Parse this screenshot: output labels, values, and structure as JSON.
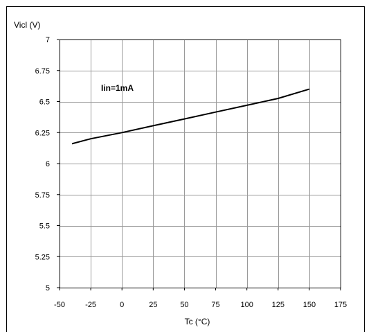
{
  "chart_data": {
    "type": "line",
    "xlabel": "Tc (°C)",
    "ylabel": "Vicl (V)",
    "xlim": [
      -50,
      175
    ],
    "ylim": [
      5,
      7
    ],
    "x_ticks": [
      -50,
      -25,
      0,
      25,
      50,
      75,
      100,
      125,
      150,
      175
    ],
    "y_ticks": [
      5,
      5.25,
      5.5,
      5.75,
      6,
      6.25,
      6.5,
      6.75,
      7
    ],
    "x_tick_labels": [
      "-50",
      "-25",
      "0",
      "25",
      "50",
      "75",
      "100",
      "125",
      "150",
      "175"
    ],
    "y_tick_labels": [
      "5",
      "5.25",
      "5.5",
      "5.75",
      "6",
      "6.25",
      "6.5",
      "6.75",
      "7"
    ],
    "grid": true,
    "series": [
      {
        "x": [
          -40,
          -25,
          0,
          25,
          50,
          75,
          100,
          125,
          150
        ],
        "y": [
          6.16,
          6.2,
          6.25,
          6.305,
          6.36,
          6.415,
          6.47,
          6.525,
          6.6
        ]
      }
    ],
    "annotations": [
      {
        "text": "Iin=1mA"
      }
    ],
    "colors": {
      "line": "#000000",
      "grid": "#999999",
      "frame": "#000000"
    }
  }
}
